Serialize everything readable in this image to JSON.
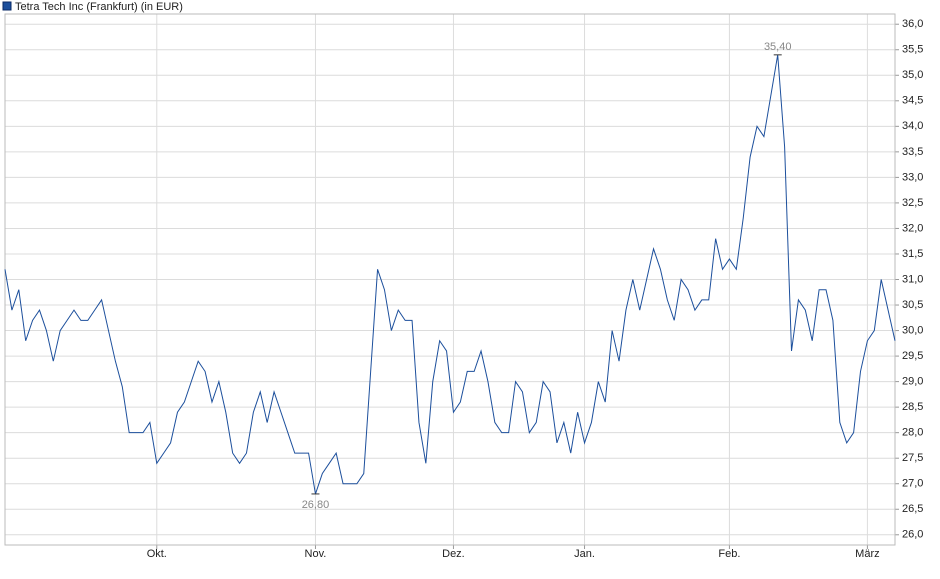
{
  "chart_data": {
    "type": "line",
    "categories": [
      null,
      null,
      null,
      null,
      null,
      null,
      null,
      null,
      null,
      null,
      null,
      null,
      null,
      null,
      null,
      null,
      null,
      null,
      null,
      null,
      null,
      null,
      "Okt.",
      null,
      null,
      null,
      null,
      null,
      null,
      null,
      null,
      null,
      null,
      null,
      null,
      null,
      null,
      null,
      null,
      null,
      null,
      null,
      null,
      null,
      null,
      "Nov.",
      null,
      null,
      null,
      null,
      null,
      null,
      null,
      null,
      null,
      null,
      null,
      null,
      null,
      null,
      null,
      null,
      null,
      null,
      null,
      "Dez.",
      null,
      null,
      null,
      null,
      null,
      null,
      null,
      null,
      null,
      null,
      null,
      null,
      null,
      null,
      null,
      null,
      null,
      null,
      "Jan.",
      null,
      null,
      null,
      null,
      null,
      null,
      null,
      null,
      null,
      null,
      null,
      null,
      null,
      null,
      null,
      null,
      null,
      null,
      null,
      null,
      "Feb.",
      null,
      null,
      null,
      null,
      null,
      null,
      null,
      null,
      null,
      null,
      null,
      null,
      null,
      null,
      null,
      null,
      null,
      null,
      null,
      "März",
      null,
      null,
      null,
      null
    ],
    "series": [
      {
        "name": "Tetra Tech Inc (Frankfurt) (in EUR)",
        "color": "#1c4f9c",
        "values": [
          31.2,
          30.4,
          30.8,
          29.8,
          30.2,
          30.4,
          30.0,
          29.4,
          30.0,
          30.2,
          30.4,
          30.2,
          30.2,
          30.4,
          30.6,
          30.0,
          29.4,
          28.9,
          28.0,
          28.0,
          28.0,
          28.2,
          27.4,
          27.6,
          27.8,
          28.4,
          28.6,
          29.0,
          29.4,
          29.2,
          28.6,
          29.0,
          28.4,
          27.6,
          27.4,
          27.6,
          28.4,
          28.8,
          28.2,
          28.8,
          28.4,
          28.0,
          27.6,
          27.6,
          27.6,
          26.8,
          27.2,
          27.4,
          27.6,
          27.0,
          27.0,
          27.0,
          27.2,
          29.2,
          31.2,
          30.8,
          30.0,
          30.4,
          30.2,
          30.2,
          28.2,
          27.4,
          29.0,
          29.8,
          29.6,
          28.4,
          28.6,
          29.2,
          29.2,
          29.6,
          29.0,
          28.2,
          28.0,
          28.0,
          29.0,
          28.8,
          28.0,
          28.2,
          29.0,
          28.8,
          27.8,
          28.2,
          27.6,
          28.4,
          27.8,
          28.2,
          29.0,
          28.6,
          30.0,
          29.4,
          30.4,
          31.0,
          30.4,
          31.0,
          31.6,
          31.2,
          30.6,
          30.2,
          31.0,
          30.8,
          30.4,
          30.6,
          30.6,
          31.8,
          31.2,
          31.4,
          31.2,
          32.2,
          33.4,
          34.0,
          33.8,
          34.6,
          35.4,
          33.6,
          29.6,
          30.6,
          30.4,
          29.8,
          30.8,
          30.8,
          30.2,
          28.2,
          27.8,
          28.0,
          29.2,
          29.8,
          30.0,
          31.0,
          30.4,
          29.8
        ],
        "value_labels": [
          null,
          null,
          null,
          null,
          null,
          null,
          null,
          null,
          null,
          null,
          null,
          null,
          null,
          null,
          null,
          null,
          null,
          null,
          null,
          null,
          null,
          null,
          null,
          null,
          null,
          null,
          null,
          null,
          null,
          null,
          null,
          null,
          null,
          null,
          null,
          null,
          null,
          null,
          null,
          null,
          null,
          null,
          null,
          null,
          null,
          "26,80",
          null,
          null,
          null,
          null,
          null,
          null,
          null,
          null,
          null,
          null,
          null,
          null,
          null,
          null,
          null,
          null,
          null,
          null,
          null,
          null,
          null,
          null,
          null,
          null,
          null,
          null,
          null,
          null,
          null,
          null,
          null,
          null,
          null,
          null,
          null,
          null,
          null,
          null,
          null,
          null,
          null,
          null,
          null,
          null,
          null,
          null,
          null,
          null,
          null,
          null,
          null,
          null,
          null,
          null,
          null,
          null,
          null,
          null,
          null,
          null,
          null,
          null,
          null,
          null,
          null,
          null,
          "35,40",
          null,
          null,
          null,
          null,
          null,
          null,
          null,
          null,
          null,
          null,
          null,
          null,
          null,
          null,
          null,
          null,
          null
        ]
      }
    ],
    "ylim": [
      25.8,
      36.2
    ],
    "yticks": [
      {
        "value": 26,
        "label": "26,0"
      },
      {
        "value": 26.5,
        "label": "26,5"
      },
      {
        "value": 27,
        "label": "27,0"
      },
      {
        "value": 27.5,
        "label": "27,5"
      },
      {
        "value": 28,
        "label": "28,0"
      },
      {
        "value": 28.5,
        "label": "28,5"
      },
      {
        "value": 29,
        "label": "29,0"
      },
      {
        "value": 29.5,
        "label": "29,5"
      },
      {
        "value": 30,
        "label": "30,0"
      },
      {
        "value": 30.5,
        "label": "30,5"
      },
      {
        "value": 31,
        "label": "31,0"
      },
      {
        "value": 31.5,
        "label": "31,5"
      },
      {
        "value": 32,
        "label": "32,0"
      },
      {
        "value": 32.5,
        "label": "32,5"
      },
      {
        "value": 33,
        "label": "33,0"
      },
      {
        "value": 33.5,
        "label": "33,5"
      },
      {
        "value": 34,
        "label": "34,0"
      },
      {
        "value": 34.5,
        "label": "34,5"
      },
      {
        "value": 35,
        "label": "35,0"
      },
      {
        "value": 35.5,
        "label": "35,5"
      },
      {
        "value": 36,
        "label": "36,0"
      }
    ],
    "grid": true
  }
}
